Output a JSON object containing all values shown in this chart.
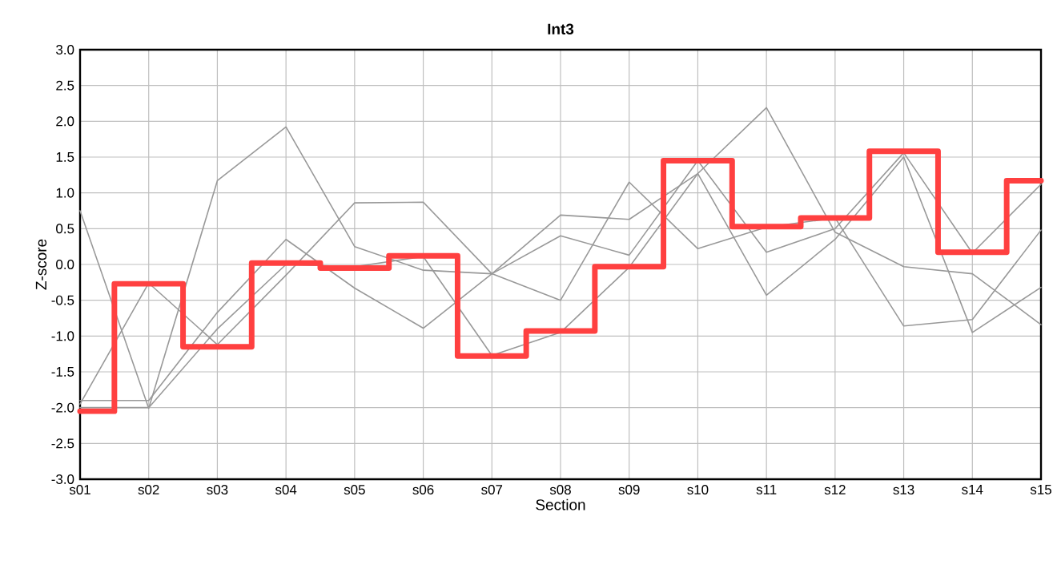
{
  "chart_data": {
    "type": "line",
    "title": "Int3",
    "xlabel": "Section",
    "ylabel": "Z-score",
    "categories": [
      "s01",
      "s02",
      "s03",
      "s04",
      "s05",
      "s06",
      "s07",
      "s08",
      "s09",
      "s10",
      "s11",
      "s12",
      "s13",
      "s14",
      "s15"
    ],
    "series": [
      {
        "color": "#999999",
        "values": [
          0.75,
          -2.01,
          1.17,
          1.92,
          0.25,
          -0.08,
          -0.13,
          0.69,
          0.63,
          1.27,
          2.19,
          0.45,
          -0.03,
          -0.13,
          -0.84
        ]
      },
      {
        "color": "#999999",
        "values": [
          -1.9,
          -1.9,
          -0.67,
          0.35,
          -0.33,
          -0.89,
          -0.13,
          0.4,
          0.13,
          1.45,
          0.17,
          0.5,
          1.56,
          0.16,
          1.12
        ]
      },
      {
        "color": "#999999",
        "values": [
          -1.95,
          -0.26,
          -1.12,
          -0.15,
          0.86,
          0.87,
          -0.13,
          -0.5,
          1.15,
          0.22,
          0.52,
          0.65,
          -0.86,
          -0.77,
          0.48
        ]
      },
      {
        "color": "#999999",
        "values": [
          -2.0,
          -2.0,
          -0.9,
          0.0,
          -0.03,
          0.11,
          -1.27,
          -0.95,
          -0.04,
          1.27,
          -0.43,
          0.35,
          1.5,
          -0.95,
          -0.32
        ]
      },
      {
        "type": "step",
        "color": "#ff4040",
        "values": [
          -2.05,
          -0.27,
          -1.15,
          0.02,
          -0.05,
          0.12,
          -1.28,
          -0.93,
          -0.03,
          1.45,
          0.53,
          0.65,
          1.58,
          0.17,
          1.17
        ]
      }
    ],
    "ylim": [
      -3,
      3
    ],
    "yticks": [
      {
        "value": -3,
        "label": "-3.0"
      },
      {
        "value": -2.5,
        "label": "-2.5"
      },
      {
        "value": -2,
        "label": "-2.0"
      },
      {
        "value": -1.5,
        "label": "-1.5"
      },
      {
        "value": -1,
        "label": "-1.0"
      },
      {
        "value": -0.5,
        "label": "-0.5"
      },
      {
        "value": 0,
        "label": "0.0"
      },
      {
        "value": 0.5,
        "label": "0.5"
      },
      {
        "value": 1,
        "label": "1.0"
      },
      {
        "value": 1.5,
        "label": "1.5"
      },
      {
        "value": 2,
        "label": "2.0"
      },
      {
        "value": 2.5,
        "label": "2.5"
      },
      {
        "value": 3,
        "label": "3.0"
      }
    ],
    "grid": true,
    "marker": "none"
  }
}
